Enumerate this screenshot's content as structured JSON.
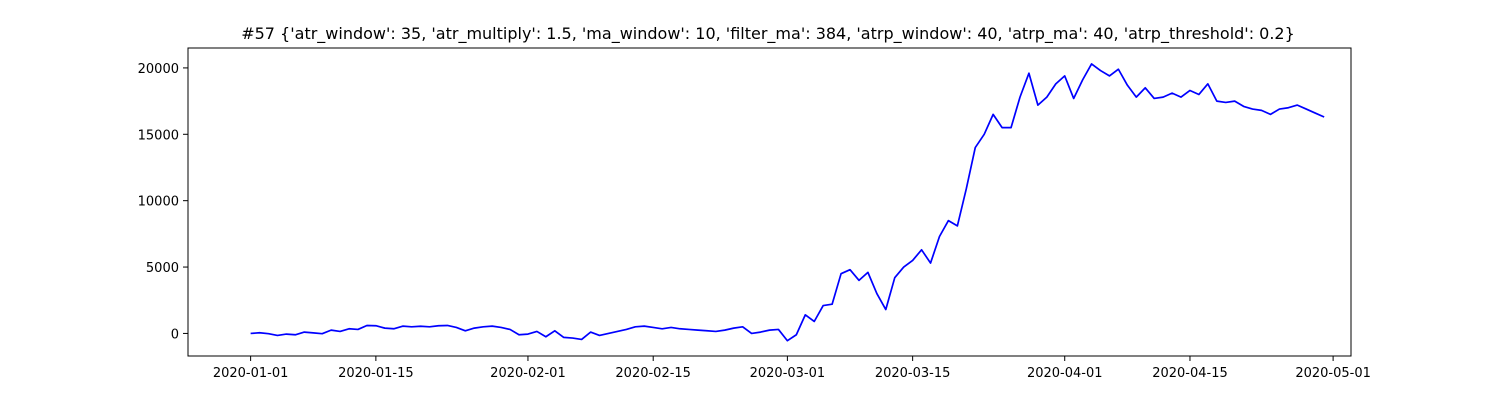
{
  "chart_data": {
    "type": "line",
    "title": "#57 {'atr_window': 35, 'atr_multiply': 1.5, 'ma_window': 10, 'filter_ma': 384, 'atrp_window': 40, 'atrp_ma': 40, 'atrp_threshold': 0.2}",
    "xlabel": "",
    "ylabel": "",
    "x_type": "date",
    "xlim": [
      "2019-12-25",
      "2020-05-03"
    ],
    "ylim": [
      -1700,
      21500
    ],
    "grid": false,
    "legend": "none",
    "x_ticks": [
      "2020-01-01",
      "2020-01-15",
      "2020-02-01",
      "2020-02-15",
      "2020-03-01",
      "2020-03-15",
      "2020-04-01",
      "2020-04-15",
      "2020-05-01"
    ],
    "y_ticks": [
      0,
      5000,
      10000,
      15000,
      20000
    ],
    "series": [
      {
        "color": "#0000ff",
        "points": [
          [
            "2020-01-01",
            0
          ],
          [
            "2020-01-02",
            50
          ],
          [
            "2020-01-03",
            -20
          ],
          [
            "2020-01-04",
            -150
          ],
          [
            "2020-01-05",
            -50
          ],
          [
            "2020-01-06",
            -100
          ],
          [
            "2020-01-07",
            100
          ],
          [
            "2020-01-08",
            40
          ],
          [
            "2020-01-09",
            -20
          ],
          [
            "2020-01-10",
            250
          ],
          [
            "2020-01-11",
            150
          ],
          [
            "2020-01-12",
            350
          ],
          [
            "2020-01-13",
            300
          ],
          [
            "2020-01-14",
            600
          ],
          [
            "2020-01-15",
            580
          ],
          [
            "2020-01-16",
            400
          ],
          [
            "2020-01-17",
            350
          ],
          [
            "2020-01-18",
            550
          ],
          [
            "2020-01-19",
            500
          ],
          [
            "2020-01-20",
            540
          ],
          [
            "2020-01-21",
            500
          ],
          [
            "2020-01-22",
            580
          ],
          [
            "2020-01-23",
            600
          ],
          [
            "2020-01-24",
            450
          ],
          [
            "2020-01-25",
            200
          ],
          [
            "2020-01-26",
            400
          ],
          [
            "2020-01-27",
            500
          ],
          [
            "2020-01-28",
            550
          ],
          [
            "2020-01-29",
            450
          ],
          [
            "2020-01-30",
            300
          ],
          [
            "2020-01-31",
            -100
          ],
          [
            "2020-02-01",
            -50
          ],
          [
            "2020-02-02",
            150
          ],
          [
            "2020-02-03",
            -250
          ],
          [
            "2020-02-04",
            200
          ],
          [
            "2020-02-05",
            -300
          ],
          [
            "2020-02-06",
            -350
          ],
          [
            "2020-02-07",
            -450
          ],
          [
            "2020-02-08",
            100
          ],
          [
            "2020-02-09",
            -150
          ],
          [
            "2020-02-10",
            0
          ],
          [
            "2020-02-11",
            150
          ],
          [
            "2020-02-12",
            300
          ],
          [
            "2020-02-13",
            500
          ],
          [
            "2020-02-14",
            550
          ],
          [
            "2020-02-15",
            450
          ],
          [
            "2020-02-16",
            350
          ],
          [
            "2020-02-17",
            450
          ],
          [
            "2020-02-18",
            350
          ],
          [
            "2020-02-19",
            300
          ],
          [
            "2020-02-20",
            250
          ],
          [
            "2020-02-21",
            200
          ],
          [
            "2020-02-22",
            150
          ],
          [
            "2020-02-23",
            250
          ],
          [
            "2020-02-24",
            400
          ],
          [
            "2020-02-25",
            500
          ],
          [
            "2020-02-26",
            0
          ],
          [
            "2020-02-27",
            100
          ],
          [
            "2020-02-28",
            250
          ],
          [
            "2020-02-29",
            300
          ],
          [
            "2020-03-01",
            -550
          ],
          [
            "2020-03-02",
            -100
          ],
          [
            "2020-03-03",
            1400
          ],
          [
            "2020-03-04",
            900
          ],
          [
            "2020-03-05",
            2100
          ],
          [
            "2020-03-06",
            2200
          ],
          [
            "2020-03-07",
            4500
          ],
          [
            "2020-03-08",
            4800
          ],
          [
            "2020-03-09",
            4000
          ],
          [
            "2020-03-10",
            4600
          ],
          [
            "2020-03-11",
            3000
          ],
          [
            "2020-03-12",
            1800
          ],
          [
            "2020-03-13",
            4200
          ],
          [
            "2020-03-14",
            5000
          ],
          [
            "2020-03-15",
            5500
          ],
          [
            "2020-03-16",
            6300
          ],
          [
            "2020-03-17",
            5300
          ],
          [
            "2020-03-18",
            7300
          ],
          [
            "2020-03-19",
            8500
          ],
          [
            "2020-03-20",
            8100
          ],
          [
            "2020-03-21",
            10900
          ],
          [
            "2020-03-22",
            14000
          ],
          [
            "2020-03-23",
            15000
          ],
          [
            "2020-03-24",
            16500
          ],
          [
            "2020-03-25",
            15500
          ],
          [
            "2020-03-26",
            15500
          ],
          [
            "2020-03-27",
            17800
          ],
          [
            "2020-03-28",
            19600
          ],
          [
            "2020-03-29",
            17200
          ],
          [
            "2020-03-30",
            17800
          ],
          [
            "2020-03-31",
            18800
          ],
          [
            "2020-04-01",
            19400
          ],
          [
            "2020-04-02",
            17700
          ],
          [
            "2020-04-03",
            19100
          ],
          [
            "2020-04-04",
            20300
          ],
          [
            "2020-04-05",
            19800
          ],
          [
            "2020-04-06",
            19400
          ],
          [
            "2020-04-07",
            19900
          ],
          [
            "2020-04-08",
            18700
          ],
          [
            "2020-04-09",
            17800
          ],
          [
            "2020-04-10",
            18500
          ],
          [
            "2020-04-11",
            17700
          ],
          [
            "2020-04-12",
            17800
          ],
          [
            "2020-04-13",
            18100
          ],
          [
            "2020-04-14",
            17800
          ],
          [
            "2020-04-15",
            18300
          ],
          [
            "2020-04-16",
            18000
          ],
          [
            "2020-04-17",
            18800
          ],
          [
            "2020-04-18",
            17500
          ],
          [
            "2020-04-19",
            17400
          ],
          [
            "2020-04-20",
            17500
          ],
          [
            "2020-04-21",
            17100
          ],
          [
            "2020-04-22",
            16900
          ],
          [
            "2020-04-23",
            16800
          ],
          [
            "2020-04-24",
            16500
          ],
          [
            "2020-04-25",
            16900
          ],
          [
            "2020-04-26",
            17000
          ],
          [
            "2020-04-27",
            17200
          ],
          [
            "2020-04-28",
            16900
          ],
          [
            "2020-04-29",
            16600
          ],
          [
            "2020-04-30",
            16300
          ]
        ]
      }
    ]
  }
}
